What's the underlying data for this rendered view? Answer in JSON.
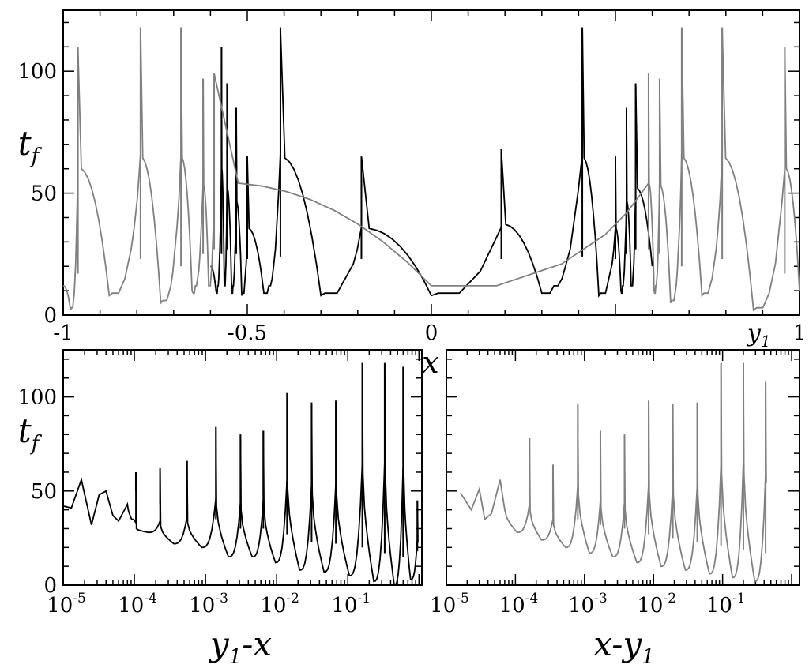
{
  "chart_data": [
    {
      "type": "line",
      "id": "top",
      "title": "",
      "xlabel": "x",
      "ylabel": "t",
      "ylabel_sub": "f",
      "annotation": "y",
      "annotation_sub": "1",
      "annotation_x": 0.89,
      "xlim": [
        -1,
        1
      ],
      "ylim": [
        0,
        125
      ],
      "xticks": [
        -1,
        -0.5,
        0,
        0.5,
        1
      ],
      "xtick_labels": [
        "-1",
        "-0.5",
        "0",
        "",
        "1"
      ],
      "yticks": [
        0,
        50,
        100
      ],
      "ytick_labels": [
        "0",
        "50",
        "100"
      ],
      "grid": false,
      "series": [
        {
          "color": "#000000",
          "spikes": [
            {
              "x": -0.57,
              "peak": 110,
              "min": 10
            },
            {
              "x": -0.555,
              "peak": 95,
              "min": 12
            },
            {
              "x": -0.53,
              "peak": 85,
              "min": 10
            },
            {
              "x": -0.5,
              "peak": 65,
              "min": 8
            },
            {
              "x": -0.41,
              "peak": 118,
              "min": 9
            },
            {
              "x": -0.19,
              "peak": 65,
              "min": 8
            },
            {
              "x": 0.19,
              "peak": 68,
              "min": 8
            },
            {
              "x": 0.41,
              "peak": 118,
              "min": 9
            },
            {
              "x": 0.5,
              "peak": 65,
              "min": 8
            },
            {
              "x": 0.53,
              "peak": 85,
              "min": 10
            },
            {
              "x": 0.555,
              "peak": 95,
              "min": 12
            }
          ]
        },
        {
          "color": "#808080",
          "spikes": [
            {
              "x": -0.96,
              "peak": 110,
              "min": 2
            },
            {
              "x": -0.79,
              "peak": 118,
              "min": 8
            },
            {
              "x": -0.68,
              "peak": 118,
              "min": 5
            },
            {
              "x": -0.62,
              "peak": 97,
              "min": 10
            },
            {
              "x": -0.59,
              "peak": 99,
              "min": 12
            },
            {
              "x": 0.59,
              "peak": 99,
              "min": 12
            },
            {
              "x": 0.62,
              "peak": 97,
              "min": 10
            },
            {
              "x": 0.68,
              "peak": 118,
              "min": 5
            },
            {
              "x": 0.79,
              "peak": 118,
              "min": 8
            },
            {
              "x": 0.96,
              "peak": 110,
              "min": 2
            }
          ]
        }
      ]
    },
    {
      "type": "line",
      "id": "bottom-left",
      "title": "",
      "xlabel": "y",
      "xlabel_sub": "1",
      "xlabel_tail": "-x",
      "ylabel": "t",
      "ylabel_sub": "f",
      "xscale": "log",
      "xlim": [
        1e-05,
        1.1
      ],
      "ylim": [
        0,
        125
      ],
      "xticks_exp": [
        -5,
        -4,
        -3,
        -2,
        -1
      ],
      "yticks": [
        0,
        50,
        100
      ],
      "ytick_labels": [
        "0",
        "50",
        "100"
      ],
      "grid": false,
      "series": [
        {
          "color": "#000000",
          "points": [
            [
              1e-05,
              42
            ],
            [
              1.3e-05,
              41
            ],
            [
              1.8e-05,
              56
            ],
            [
              2.5e-05,
              32
            ],
            [
              3.2e-05,
              48
            ],
            [
              4e-05,
              50
            ],
            [
              5e-05,
              37
            ],
            [
              6e-05,
              34
            ],
            [
              8e-05,
              43
            ]
          ],
          "spikes": [
            {
              "x": 0.000105,
              "peak": 60,
              "min": 35
            },
            {
              "x": 0.00023,
              "peak": 62,
              "min": 28
            },
            {
              "x": 0.00055,
              "peak": 66,
              "min": 22
            },
            {
              "x": 0.0014,
              "peak": 84,
              "min": 20
            },
            {
              "x": 0.0031,
              "peak": 80,
              "min": 15
            },
            {
              "x": 0.0065,
              "peak": 82,
              "min": 15
            },
            {
              "x": 0.014,
              "peak": 102,
              "min": 12
            },
            {
              "x": 0.031,
              "peak": 97,
              "min": 8
            },
            {
              "x": 0.068,
              "peak": 98,
              "min": 7
            },
            {
              "x": 0.16,
              "peak": 118,
              "min": 5
            },
            {
              "x": 0.33,
              "peak": 118,
              "min": 2
            },
            {
              "x": 0.6,
              "peak": 116,
              "min": 0
            },
            {
              "x": 0.95,
              "peak": 45,
              "min": 3
            }
          ]
        }
      ]
    },
    {
      "type": "line",
      "id": "bottom-right",
      "title": "",
      "xlabel": "x-y",
      "xlabel_sub": "1",
      "xscale": "log",
      "xlim": [
        1e-05,
        1.3
      ],
      "ylim": [
        0,
        125
      ],
      "xticks_exp": [
        -5,
        -4,
        -3,
        -2,
        -1
      ],
      "yticks": [
        0,
        50,
        100
      ],
      "grid": false,
      "series": [
        {
          "color": "#808080",
          "points": [
            [
              1.6e-05,
              49
            ],
            [
              2.3e-05,
              40
            ],
            [
              3e-05,
              51
            ],
            [
              3.6e-05,
              35
            ],
            [
              4.5e-05,
              38
            ],
            [
              6e-05,
              56
            ],
            [
              7e-05,
              40
            ]
          ],
          "spikes": [
            {
              "x": 0.00016,
              "peak": 78,
              "min": 28
            },
            {
              "x": 0.00035,
              "peak": 64,
              "min": 24
            },
            {
              "x": 0.0008,
              "peak": 96,
              "min": 20
            },
            {
              "x": 0.0017,
              "peak": 82,
              "min": 17
            },
            {
              "x": 0.0038,
              "peak": 80,
              "min": 15
            },
            {
              "x": 0.0085,
              "peak": 98,
              "min": 12
            },
            {
              "x": 0.019,
              "peak": 96,
              "min": 10
            },
            {
              "x": 0.043,
              "peak": 97,
              "min": 8
            },
            {
              "x": 0.095,
              "peak": 118,
              "min": 6
            },
            {
              "x": 0.2,
              "peak": 118,
              "min": 4
            },
            {
              "x": 0.42,
              "peak": 108,
              "min": 2
            }
          ]
        }
      ]
    }
  ]
}
